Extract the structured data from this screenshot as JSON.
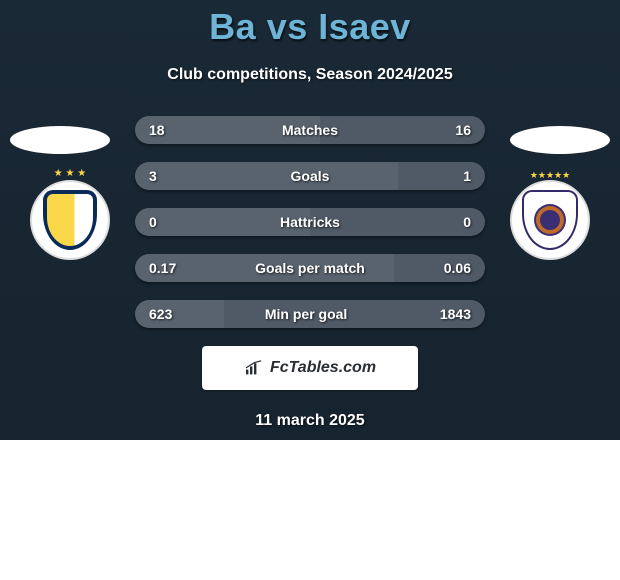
{
  "header": {
    "title": "Ba vs Isaev",
    "title_color": "#6db4d6",
    "subtitle": "Club competitions, Season 2024/2025"
  },
  "background": {
    "body_gradient_top": "#1a2936",
    "body_gradient_bottom": "#15222d"
  },
  "player_left": {
    "name": "Ba"
  },
  "player_right": {
    "name": "Isaev"
  },
  "stats": {
    "bar_base_color": "#505a66",
    "bar_fill_color": "#58636e",
    "label_color": "#ffffff",
    "rows": [
      {
        "label": "Matches",
        "left_value": "18",
        "right_value": "16",
        "left_num": 18,
        "right_num": 16,
        "left_pct": 52.9
      },
      {
        "label": "Goals",
        "left_value": "3",
        "right_value": "1",
        "left_num": 3,
        "right_num": 1,
        "left_pct": 75.0
      },
      {
        "label": "Hattricks",
        "left_value": "0",
        "right_value": "0",
        "left_num": 0,
        "right_num": 0,
        "left_pct": 50.0
      },
      {
        "label": "Goals per match",
        "left_value": "0.17",
        "right_value": "0.06",
        "left_num": 0.17,
        "right_num": 0.06,
        "left_pct": 73.9
      },
      {
        "label": "Min per goal",
        "left_value": "623",
        "right_value": "1843",
        "left_num": 623,
        "right_num": 1843,
        "left_pct": 25.3
      }
    ]
  },
  "watermark": {
    "text": "FcTables.com",
    "icon_name": "bar-chart-icon"
  },
  "footer": {
    "date": "11 march 2025"
  }
}
